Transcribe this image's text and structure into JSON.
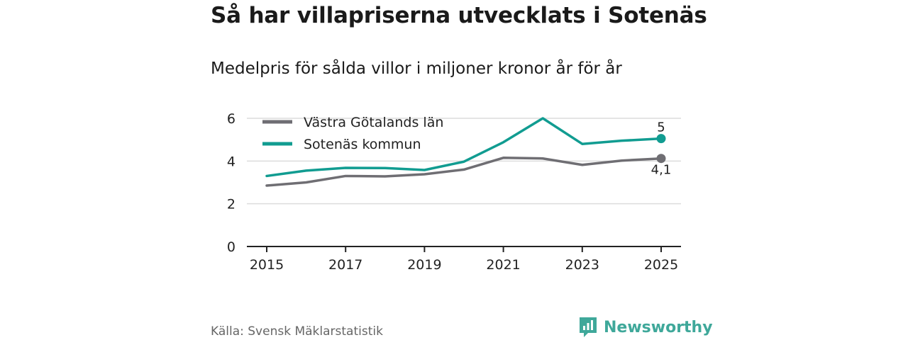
{
  "title": "Så har villapriserna utvecklats i Sotenäs",
  "subtitle": "Medelpris för sålda villor i miljoner kronor år för år",
  "source": "Källa: Svensk Mäklarstatistik",
  "brand": {
    "name": "Newsworthy",
    "icon": "newsworthy-logo-icon",
    "color": "#3fa89a"
  },
  "chart_data": {
    "type": "line",
    "title": "Så har villapriserna utvecklats i Sotenäs",
    "subtitle": "Medelpris för sålda villor i miljoner kronor år för år",
    "xlabel": "",
    "ylabel": "",
    "x": [
      2015,
      2016,
      2017,
      2018,
      2019,
      2020,
      2021,
      2022,
      2023,
      2024,
      2025
    ],
    "xticks": [
      "2015",
      "2017",
      "2019",
      "2021",
      "2023",
      "2025"
    ],
    "xlim": [
      2015,
      2025
    ],
    "ylim": [
      0,
      6
    ],
    "yticks": [
      "0",
      "2",
      "4",
      "6"
    ],
    "grid": true,
    "legend_position": "top-left",
    "series": [
      {
        "name": "Västra Götalands län",
        "color": "#6f6e73",
        "values": [
          2.85,
          3.0,
          3.3,
          3.28,
          3.38,
          3.6,
          4.15,
          4.12,
          3.82,
          4.02,
          4.12
        ],
        "end_label": "4,1"
      },
      {
        "name": "Sotenäs kommun",
        "color": "#119c91",
        "values": [
          3.3,
          3.55,
          3.68,
          3.67,
          3.58,
          3.97,
          4.88,
          6.0,
          4.8,
          4.95,
          5.05
        ],
        "end_label": "5"
      }
    ]
  }
}
